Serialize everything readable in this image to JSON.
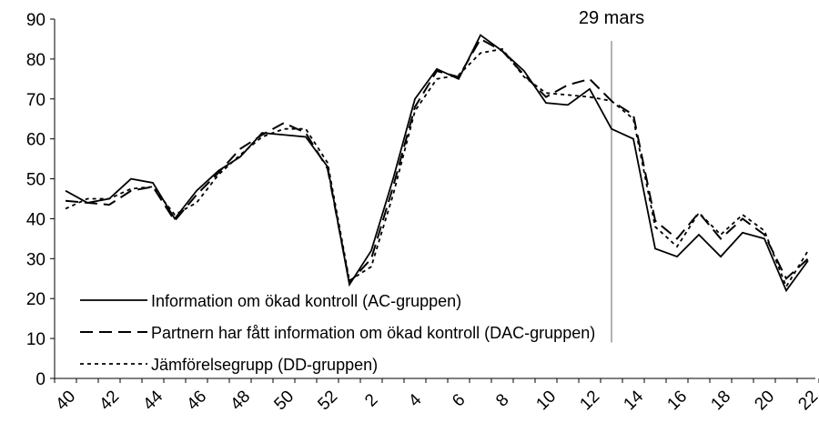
{
  "chart_data": {
    "type": "line",
    "categories": [
      "40",
      null,
      "42",
      null,
      "44",
      null,
      "46",
      null,
      "48",
      null,
      "50",
      null,
      "52",
      null,
      "2",
      null,
      "4",
      null,
      "6",
      null,
      "8",
      null,
      "10",
      null,
      "12",
      null,
      "14",
      null,
      "16",
      null,
      "18",
      null,
      "20",
      null,
      "22"
    ],
    "series": [
      {
        "name": "Information om ökad kontroll (AC-gruppen)",
        "color": "#000000",
        "dash": "solid",
        "values": [
          47,
          44,
          45,
          50,
          49,
          40,
          47,
          52,
          55.5,
          61.5,
          61,
          60.5,
          53,
          23.5,
          32,
          50,
          70,
          77.5,
          75,
          86,
          82,
          77,
          69,
          68.5,
          72.5,
          62.5,
          60,
          32.5,
          30.5,
          36,
          30.5,
          36.5,
          35,
          22,
          29.5
        ]
      },
      {
        "name": "Partnern har fått information om ökad kontroll (DAC-gruppen)",
        "color": "#000000",
        "dash": "dashed",
        "values": [
          44.5,
          44,
          43.5,
          47,
          48,
          39.5,
          46,
          51.5,
          57.5,
          61,
          64,
          61.5,
          52.5,
          24,
          30,
          48,
          68,
          77,
          75.5,
          85,
          82,
          76,
          70.5,
          73.5,
          75,
          69.5,
          66,
          39.5,
          35,
          41.5,
          35,
          40,
          36,
          25,
          30
        ]
      },
      {
        "name": "Jämförelsegrupp (DD-gruppen)",
        "color": "#000000",
        "dash": "dotted",
        "values": [
          42.5,
          45,
          45,
          47.5,
          48,
          41,
          44,
          51,
          56,
          60.5,
          62.5,
          62.5,
          54,
          24.5,
          28,
          46,
          67,
          75,
          76,
          81.5,
          82.5,
          75.5,
          71.5,
          71,
          70.5,
          69.5,
          65,
          38,
          33,
          41.5,
          36,
          41,
          37,
          23,
          32
        ]
      }
    ],
    "vline": {
      "label": "29 mars",
      "index": 25
    },
    "ylim": [
      0,
      90
    ],
    "yticks": [
      0,
      10,
      20,
      30,
      40,
      50,
      60,
      70,
      80,
      90
    ],
    "legend": "lower left",
    "grid": false
  }
}
